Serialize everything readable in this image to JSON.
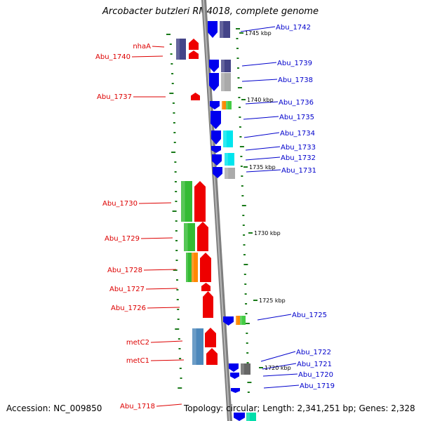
{
  "title": "Arcobacter butzleri RM4018, complete genome",
  "footer": {
    "accession": "Accession: NC_009850",
    "summary": "Topology: circular; Length: 2,341,251 bp; Genes: 2,328"
  },
  "colors": {
    "left_label": "#dd0000",
    "right_label": "#0000cc",
    "backbone": "#7f7f7f",
    "tick": "#1a7a1a"
  },
  "kbp_markers": [
    "1745 kbp",
    "1740 kbp",
    "1735 kbp",
    "1730 kbp",
    "1725 kbp",
    "1720 kbp"
  ],
  "left_labels": [
    "nhaA",
    "Abu_1740",
    "Abu_1737",
    "Abu_1730",
    "Abu_1729",
    "Abu_1728",
    "Abu_1727",
    "Abu_1726",
    "metC2",
    "metC1",
    "Abu_1718"
  ],
  "right_labels": [
    "Abu_1742",
    "Abu_1739",
    "Abu_1738",
    "Abu_1736",
    "Abu_1735",
    "Abu_1734",
    "Abu_1733",
    "Abu_1732",
    "Abu_1731",
    "Abu_1725",
    "Abu_1722",
    "Abu_1721",
    "Abu_1720",
    "Abu_1719"
  ]
}
